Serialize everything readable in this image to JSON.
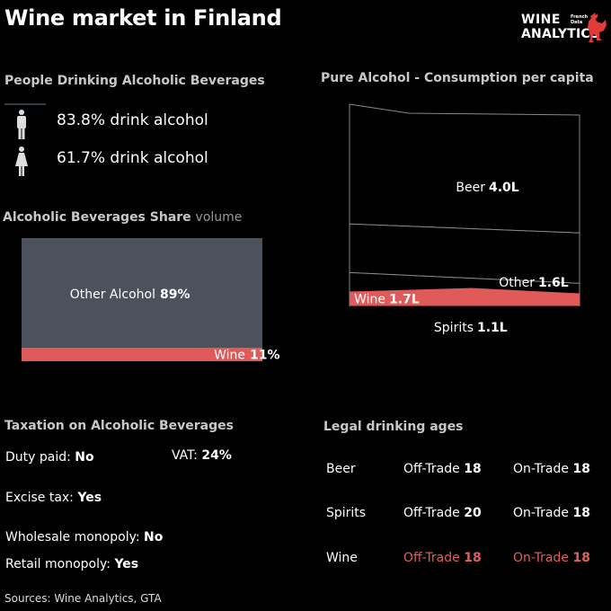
{
  "title": "Wine market in Finland",
  "logo": {
    "line1": "WINE",
    "line2": "ANALYTICS",
    "small1": "French",
    "small2": "Data"
  },
  "people": {
    "heading": "People Drinking Alcoholic Beverages",
    "male": {
      "value": "83.8%",
      "label": "drink alcohol"
    },
    "female": {
      "value": "61.7%",
      "label": "drink alcohol"
    }
  },
  "share": {
    "heading_bold": "Alcoholic Beverages Share",
    "heading_light": "volume"
  },
  "pure": {
    "heading": "Pure Alcohol - Consumption per capita"
  },
  "taxation": {
    "heading": "Taxation on Alcoholic Beverages",
    "duty_label": "Duty paid:",
    "duty_value": "No",
    "vat_label": "VAT:",
    "vat_value": "24%",
    "excise_label": "Excise tax:",
    "excise_value": "Yes",
    "wholesale_label": "Wholesale monopoly:",
    "wholesale_value": "No",
    "retail_label": "Retail monopoly:",
    "retail_value": "Yes"
  },
  "ages": {
    "heading": "Legal drinking ages",
    "off_label": "Off-Trade",
    "on_label": "On-Trade",
    "rows": [
      {
        "name": "Beer",
        "off": "18",
        "on": "18"
      },
      {
        "name": "Spirits",
        "off": "20",
        "on": "18"
      },
      {
        "name": "Wine",
        "off": "18",
        "on": "18"
      }
    ]
  },
  "sources": "Sources: Wine Analytics, GTA",
  "colors": {
    "wine": "#e05a5a",
    "other": "#4b525c",
    "heading": "#c8c8c8"
  },
  "chart_data": [
    {
      "type": "bar",
      "subtype": "stacked-100",
      "categories": [
        "Other Alcohol",
        "Wine"
      ],
      "values": [
        89,
        11
      ],
      "value_labels": [
        "89%",
        "11%"
      ],
      "unit": "%"
    },
    {
      "type": "area",
      "subtype": "stacked",
      "categories": [
        "Beer",
        "Other",
        "Spirits",
        "Wine"
      ],
      "values": [
        4.0,
        1.6,
        1.1,
        1.7
      ],
      "value_labels": [
        "4.0L",
        "1.6L",
        "1.1L",
        "1.7L"
      ],
      "unit": "L"
    }
  ]
}
